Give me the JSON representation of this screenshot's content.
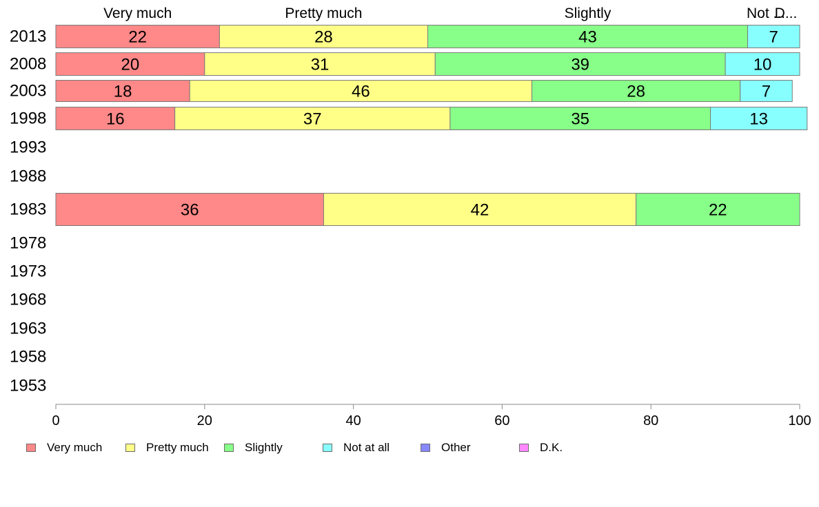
{
  "chart_data": {
    "type": "bar",
    "orientation": "horizontal",
    "stacked": true,
    "categories": [
      "2013",
      "2008",
      "2003",
      "1998",
      "1993",
      "1988",
      "1983",
      "1978",
      "1973",
      "1968",
      "1963",
      "1958",
      "1953"
    ],
    "series": [
      {
        "name": "Very much",
        "color": "#ff8888",
        "values": [
          22,
          20,
          18,
          16,
          null,
          null,
          36,
          null,
          null,
          null,
          null,
          null,
          null
        ]
      },
      {
        "name": "Pretty much",
        "color": "#ffff88",
        "values": [
          28,
          31,
          46,
          37,
          null,
          null,
          42,
          null,
          null,
          null,
          null,
          null,
          null
        ]
      },
      {
        "name": "Slightly",
        "color": "#88ff88",
        "values": [
          43,
          39,
          28,
          35,
          null,
          null,
          22,
          null,
          null,
          null,
          null,
          null,
          null
        ]
      },
      {
        "name": "Not at all",
        "color": "#88ffff",
        "values": [
          7,
          10,
          7,
          13,
          null,
          null,
          null,
          null,
          null,
          null,
          null,
          null,
          null
        ]
      },
      {
        "name": "Other",
        "color": "#8888ff",
        "values": [
          null,
          null,
          null,
          null,
          null,
          null,
          null,
          null,
          null,
          null,
          null,
          null,
          null
        ]
      },
      {
        "name": "D.K.",
        "color": "#ff88ff",
        "values": [
          null,
          null,
          null,
          null,
          null,
          null,
          null,
          null,
          null,
          null,
          null,
          null,
          null
        ]
      }
    ],
    "top_labels": [
      "Very much",
      "Pretty much",
      "Slightly",
      "Not ...",
      "D..."
    ],
    "xlim": [
      0,
      100
    ],
    "xticks": [
      "0",
      "20",
      "40",
      "60",
      "80",
      "100"
    ],
    "grid": false,
    "legend_position": "bottom"
  }
}
